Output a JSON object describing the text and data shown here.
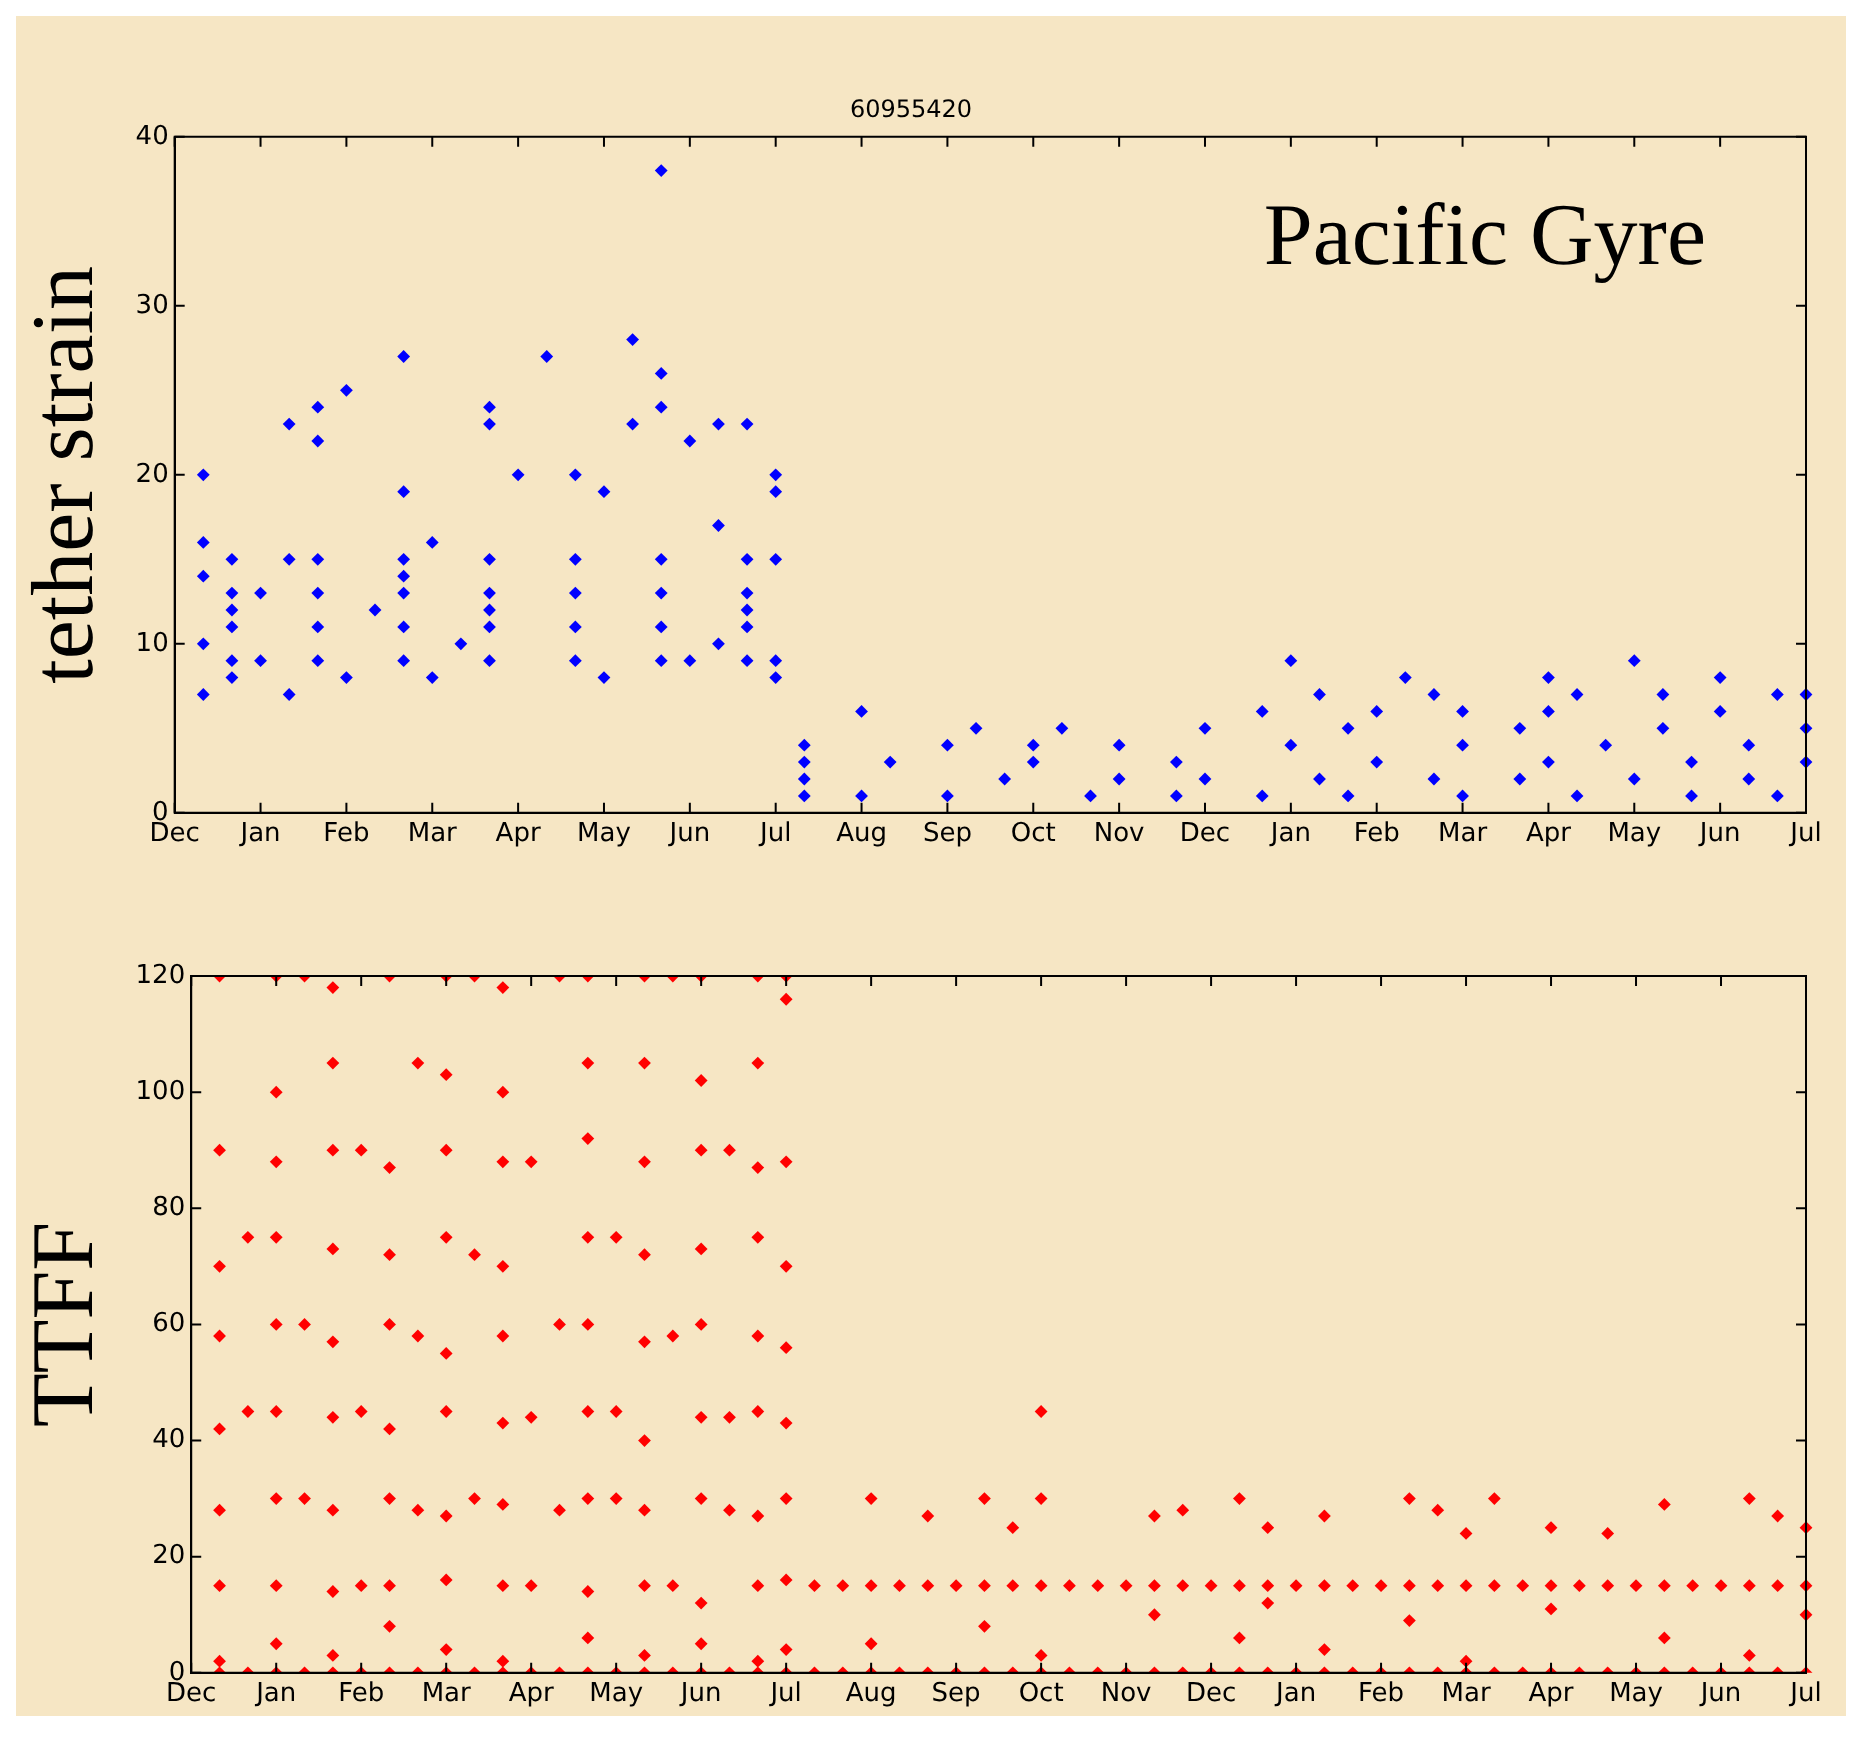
{
  "chart_data": [
    {
      "type": "scatter",
      "title": "60955420",
      "ylabel": "tether strain",
      "annotations": [
        "Pacific Gyre"
      ],
      "marker": "diamond",
      "grid": false,
      "legend": false,
      "categories": [
        "Dec",
        null,
        null,
        "Jan",
        null,
        null,
        "Feb",
        null,
        null,
        "Mar",
        null,
        null,
        "Apr",
        null,
        null,
        "May",
        null,
        null,
        "Jun",
        null,
        null,
        "Jul",
        null,
        null,
        "Aug",
        null,
        null,
        "Sep",
        null,
        null,
        "Oct",
        null,
        null,
        "Nov",
        null,
        null,
        "Dec",
        null,
        null,
        "Jan",
        null,
        null,
        "Feb",
        null,
        null,
        "Mar",
        null,
        null,
        "Apr",
        null,
        null,
        "May",
        null,
        null,
        "Jun",
        null,
        null,
        "Jul"
      ],
      "ylim": [
        0,
        40
      ],
      "yticks": [
        0,
        10,
        20,
        30,
        40
      ],
      "series": [
        {
          "color": "#0000ff",
          "values": [
            null,
            7,
            8,
            9,
            7,
            9,
            8,
            12,
            9,
            8,
            10,
            9,
            20,
            27,
            9,
            8,
            23,
            9,
            9,
            10,
            9,
            8,
            1,
            null,
            1,
            3,
            null,
            1,
            5,
            2,
            3,
            5,
            1,
            2,
            null,
            1,
            2,
            null,
            1,
            4,
            2,
            1,
            3,
            8,
            2,
            1,
            null,
            2,
            3,
            1,
            4,
            2,
            5,
            1,
            6,
            2,
            1,
            3
          ]
        },
        {
          "color": "#0000ff",
          "values": [
            null,
            10,
            9,
            13,
            15,
            11,
            25,
            null,
            11,
            16,
            null,
            11,
            null,
            null,
            11,
            19,
            28,
            11,
            22,
            17,
            11,
            9,
            2,
            null,
            6,
            null,
            null,
            4,
            null,
            null,
            4,
            null,
            null,
            4,
            null,
            3,
            5,
            null,
            6,
            9,
            7,
            5,
            6,
            null,
            7,
            4,
            null,
            5,
            6,
            7,
            null,
            9,
            7,
            3,
            8,
            4,
            7,
            5
          ]
        },
        {
          "color": "#0000ff",
          "values": [
            null,
            14,
            11,
            null,
            23,
            13,
            null,
            null,
            13,
            null,
            null,
            12,
            null,
            null,
            13,
            null,
            null,
            13,
            null,
            23,
            12,
            15,
            3,
            null,
            null,
            null,
            null,
            null,
            null,
            null,
            null,
            null,
            null,
            null,
            null,
            null,
            null,
            null,
            null,
            null,
            null,
            null,
            null,
            null,
            null,
            6,
            null,
            null,
            8,
            null,
            null,
            null,
            null,
            null,
            null,
            null,
            null,
            7
          ]
        },
        {
          "color": "#0000ff",
          "values": [
            null,
            16,
            12,
            null,
            null,
            15,
            null,
            null,
            14,
            null,
            null,
            13,
            null,
            null,
            15,
            null,
            null,
            15,
            null,
            null,
            13,
            19,
            4,
            null,
            null,
            null,
            null,
            null,
            null,
            null,
            null,
            null,
            null,
            null,
            null,
            null,
            null,
            null,
            null,
            null,
            null,
            null,
            null,
            null,
            null,
            null,
            null,
            null,
            null,
            null,
            null,
            null,
            null,
            null,
            null,
            null,
            null,
            null
          ]
        },
        {
          "color": "#0000ff",
          "values": [
            null,
            20,
            13,
            null,
            null,
            22,
            null,
            null,
            15,
            null,
            null,
            15,
            null,
            null,
            20,
            null,
            null,
            24,
            null,
            null,
            15,
            20,
            null,
            null,
            null,
            null,
            null,
            null,
            null,
            null,
            null,
            null,
            null,
            null,
            null,
            null,
            null,
            null,
            null,
            null,
            null,
            null,
            null,
            null,
            null,
            null,
            null,
            null,
            null,
            null,
            null,
            null,
            null,
            null,
            null,
            null,
            null,
            null
          ]
        },
        {
          "color": "#0000ff",
          "values": [
            null,
            null,
            15,
            null,
            null,
            24,
            null,
            null,
            19,
            null,
            null,
            23,
            null,
            null,
            null,
            null,
            null,
            26,
            null,
            null,
            23,
            null,
            null,
            null,
            null,
            null,
            null,
            null,
            null,
            null,
            null,
            null,
            null,
            null,
            null,
            null,
            null,
            null,
            null,
            null,
            null,
            null,
            null,
            null,
            null,
            null,
            null,
            null,
            null,
            null,
            null,
            null,
            null,
            null,
            null,
            null,
            null,
            null
          ]
        },
        {
          "color": "#0000ff",
          "values": [
            null,
            null,
            null,
            null,
            null,
            null,
            null,
            null,
            27,
            null,
            null,
            24,
            null,
            null,
            null,
            null,
            null,
            38,
            null,
            null,
            null,
            null,
            null,
            null,
            null,
            null,
            null,
            null,
            null,
            null,
            null,
            null,
            null,
            null,
            null,
            null,
            null,
            null,
            null,
            null,
            null,
            null,
            null,
            null,
            null,
            null,
            null,
            null,
            null,
            null,
            null,
            null,
            null,
            null,
            null,
            null,
            null,
            null
          ]
        }
      ]
    },
    {
      "type": "scatter",
      "ylabel": "TTFF",
      "marker": "diamond",
      "grid": false,
      "legend": false,
      "categories": [
        "Dec",
        null,
        null,
        "Jan",
        null,
        null,
        "Feb",
        null,
        null,
        "Mar",
        null,
        null,
        "Apr",
        null,
        null,
        "May",
        null,
        null,
        "Jun",
        null,
        null,
        "Jul",
        null,
        null,
        "Aug",
        null,
        null,
        "Sep",
        null,
        null,
        "Oct",
        null,
        null,
        "Nov",
        null,
        null,
        "Dec",
        null,
        null,
        "Jan",
        null,
        null,
        "Feb",
        null,
        null,
        "Mar",
        null,
        null,
        "Apr",
        null,
        null,
        "May",
        null,
        null,
        "Jun",
        null,
        null,
        "Jul"
      ],
      "ylim": [
        0,
        120
      ],
      "yticks": [
        0,
        20,
        40,
        60,
        80,
        100,
        120
      ],
      "series": [
        {
          "color": "#ff0000",
          "values": [
            null,
            0,
            0,
            0,
            0,
            0,
            0,
            0,
            0,
            0,
            0,
            0,
            0,
            0,
            0,
            0,
            0,
            0,
            0,
            0,
            0,
            0,
            0,
            0,
            0,
            0,
            0,
            0,
            0,
            0,
            0,
            0,
            0,
            0,
            0,
            0,
            0,
            0,
            0,
            0,
            0,
            0,
            0,
            0,
            0,
            0,
            0,
            0,
            0,
            0,
            0,
            0,
            0,
            0,
            0,
            0,
            0,
            0
          ]
        },
        {
          "color": "#ff0000",
          "values": [
            null,
            2,
            45,
            5,
            30,
            3,
            15,
            8,
            28,
            4,
            30,
            2,
            15,
            28,
            6,
            30,
            3,
            15,
            5,
            28,
            2,
            4,
            15,
            15,
            5,
            15,
            15,
            15,
            8,
            15,
            3,
            15,
            15,
            15,
            10,
            15,
            15,
            6,
            12,
            15,
            4,
            15,
            15,
            9,
            15,
            2,
            15,
            15,
            11,
            15,
            15,
            15,
            6,
            15,
            15,
            3,
            15,
            10
          ]
        },
        {
          "color": "#ff0000",
          "values": [
            null,
            15,
            75,
            15,
            60,
            14,
            45,
            15,
            58,
            16,
            72,
            15,
            44,
            60,
            14,
            45,
            15,
            58,
            12,
            44,
            15,
            16,
            null,
            null,
            15,
            null,
            27,
            null,
            15,
            25,
            15,
            null,
            null,
            null,
            15,
            28,
            null,
            15,
            15,
            null,
            15,
            null,
            null,
            15,
            28,
            15,
            30,
            null,
            15,
            null,
            24,
            null,
            15,
            null,
            null,
            15,
            27,
            15
          ]
        },
        {
          "color": "#ff0000",
          "values": [
            null,
            28,
            null,
            30,
            120,
            28,
            90,
            30,
            105,
            27,
            120,
            29,
            88,
            120,
            30,
            75,
            28,
            120,
            30,
            90,
            27,
            30,
            null,
            null,
            30,
            null,
            null,
            null,
            30,
            null,
            30,
            null,
            null,
            null,
            27,
            null,
            null,
            30,
            25,
            null,
            27,
            null,
            null,
            30,
            null,
            24,
            null,
            null,
            25,
            null,
            null,
            null,
            29,
            null,
            null,
            30,
            null,
            25
          ]
        },
        {
          "color": "#ff0000",
          "values": [
            null,
            42,
            null,
            45,
            null,
            44,
            null,
            42,
            null,
            45,
            null,
            43,
            null,
            null,
            45,
            null,
            40,
            null,
            44,
            null,
            45,
            43,
            null,
            null,
            null,
            null,
            null,
            null,
            null,
            null,
            45,
            null,
            null,
            null,
            null,
            null,
            null,
            null,
            null,
            null,
            null,
            null,
            null,
            null,
            null,
            null,
            null,
            null,
            null,
            null,
            null,
            null,
            null,
            null,
            null,
            null,
            null,
            null
          ]
        },
        {
          "color": "#ff0000",
          "values": [
            null,
            58,
            null,
            60,
            null,
            57,
            null,
            60,
            null,
            55,
            null,
            58,
            null,
            null,
            60,
            null,
            57,
            null,
            60,
            null,
            58,
            56,
            null,
            null,
            null,
            null,
            null,
            null,
            null,
            null,
            null,
            null,
            null,
            null,
            null,
            null,
            null,
            null,
            null,
            null,
            null,
            null,
            null,
            null,
            null,
            null,
            null,
            null,
            null,
            null,
            null,
            null,
            null,
            null,
            null,
            null,
            null,
            null
          ]
        },
        {
          "color": "#ff0000",
          "values": [
            null,
            70,
            null,
            75,
            null,
            73,
            null,
            72,
            null,
            75,
            null,
            70,
            null,
            null,
            75,
            null,
            72,
            null,
            73,
            null,
            75,
            70,
            null,
            null,
            null,
            null,
            null,
            null,
            null,
            null,
            null,
            null,
            null,
            null,
            null,
            null,
            null,
            null,
            null,
            null,
            null,
            null,
            null,
            null,
            null,
            null,
            null,
            null,
            null,
            null,
            null,
            null,
            null,
            null,
            null,
            null,
            null,
            null
          ]
        },
        {
          "color": "#ff0000",
          "values": [
            null,
            90,
            null,
            88,
            null,
            90,
            null,
            87,
            null,
            90,
            null,
            88,
            null,
            null,
            92,
            null,
            88,
            null,
            90,
            null,
            87,
            88,
            null,
            null,
            null,
            null,
            null,
            null,
            null,
            null,
            null,
            null,
            null,
            null,
            null,
            null,
            null,
            null,
            null,
            null,
            null,
            null,
            null,
            null,
            null,
            null,
            null,
            null,
            null,
            null,
            null,
            null,
            null,
            null,
            null,
            null,
            null,
            null
          ]
        },
        {
          "color": "#ff0000",
          "values": [
            null,
            120,
            null,
            100,
            null,
            105,
            null,
            120,
            null,
            103,
            null,
            100,
            null,
            null,
            105,
            null,
            105,
            null,
            102,
            null,
            105,
            116,
            null,
            null,
            null,
            null,
            null,
            null,
            null,
            null,
            null,
            null,
            null,
            null,
            null,
            null,
            null,
            null,
            null,
            null,
            null,
            null,
            null,
            null,
            null,
            null,
            null,
            null,
            null,
            null,
            null,
            null,
            null,
            null,
            null,
            null,
            null,
            null
          ]
        },
        {
          "color": "#ff0000",
          "values": [
            null,
            null,
            null,
            120,
            null,
            118,
            null,
            null,
            null,
            120,
            null,
            118,
            null,
            null,
            120,
            null,
            120,
            null,
            120,
            null,
            120,
            120,
            null,
            null,
            null,
            null,
            null,
            null,
            null,
            null,
            null,
            null,
            null,
            null,
            null,
            null,
            null,
            null,
            null,
            null,
            null,
            null,
            null,
            null,
            null,
            null,
            null,
            null,
            null,
            null,
            null,
            null,
            null,
            null,
            null,
            null,
            null,
            null
          ]
        }
      ]
    }
  ]
}
